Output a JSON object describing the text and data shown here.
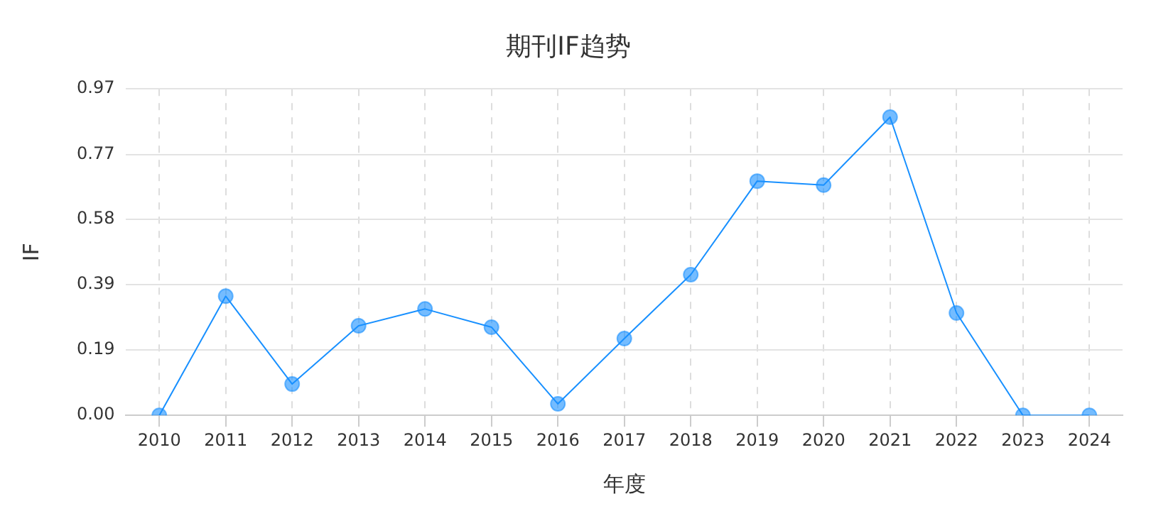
{
  "chart_data": {
    "type": "line",
    "title": "期刊IF趋势",
    "xlabel": "年度",
    "ylabel": "IF",
    "categories": [
      "2010",
      "2011",
      "2012",
      "2013",
      "2014",
      "2015",
      "2016",
      "2017",
      "2018",
      "2019",
      "2020",
      "2021",
      "2022",
      "2023",
      "2024"
    ],
    "series": [
      {
        "color": "#1890ff",
        "values": [
          0,
          0.354,
          0.093,
          0.266,
          0.316,
          0.262,
          0.034,
          0.228,
          0.418,
          0.696,
          0.684,
          0.886,
          0.304,
          0,
          0
        ]
      }
    ],
    "ylim": [
      0,
      0.97
    ],
    "yticks": [
      {
        "value": 0,
        "label": "0.00"
      },
      {
        "value": 0.194,
        "label": "0.19"
      },
      {
        "value": 0.388,
        "label": "0.39"
      },
      {
        "value": 0.582,
        "label": "0.58"
      },
      {
        "value": 0.774,
        "label": "0.77"
      },
      {
        "value": 0.97,
        "label": "0.97"
      }
    ],
    "grid": true,
    "legend": false,
    "marker": "circle",
    "line_style": "solid"
  }
}
